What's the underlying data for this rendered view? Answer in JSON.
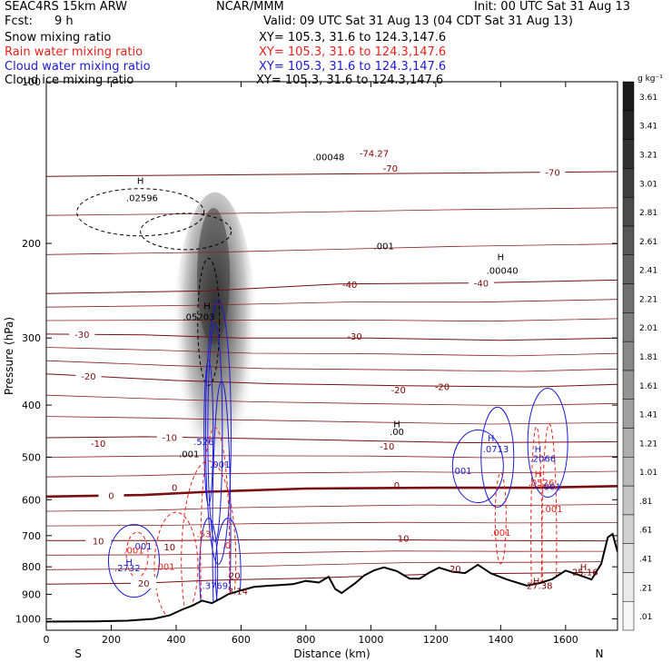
{
  "header": {
    "model": "SEAC4RS 15km ARW",
    "org": "NCAR/MMM",
    "init": "Init: 00 UTC Sat 31 Aug 13",
    "fcst_label": "Fcst:",
    "fcst_value": "9 h",
    "valid": "Valid: 09 UTC Sat 31 Aug 13 (04 CDT Sat 31 Aug 13)",
    "fields": [
      {
        "name": "Snow mixing ratio",
        "xy": "XY= 105.3, 31.6 to 124.3,147.6",
        "color": "#000000"
      },
      {
        "name": "Rain water mixing ratio",
        "xy": "XY= 105.3, 31.6 to 124.3,147.6",
        "color": "#e8221c"
      },
      {
        "name": "Cloud water mixing ratio",
        "xy": "XY= 105.3, 31.6 to 124.3,147.6",
        "color": "#1a1ad6"
      },
      {
        "name": "Cloud ice mixing ratio",
        "xy": "XY= 105.3, 31.6 to 124.3,147.6",
        "color": "#000000"
      }
    ]
  },
  "chart_data": {
    "type": "heatmap",
    "xlabel": "Distance (km)",
    "ylabel": "Pressure (hPa)",
    "xlim": [
      0,
      1760
    ],
    "ylim": [
      1050,
      100
    ],
    "y_scale": "log",
    "xticks": [
      0,
      200,
      400,
      600,
      800,
      1000,
      1200,
      1400,
      1600
    ],
    "yticks": [
      1000,
      900,
      800,
      700,
      600,
      500,
      400,
      300,
      200,
      100
    ],
    "x_end_labels": {
      "left": "S",
      "right": "N"
    },
    "colorbar": {
      "unit": "g kg⁻¹",
      "levels": [
        ".01",
        ".21",
        ".41",
        ".61",
        ".81",
        "1.01",
        "1.21",
        "1.41",
        "1.61",
        "1.81",
        "2.01",
        "2.21",
        "2.41",
        "2.61",
        "2.81",
        "3.01",
        "3.21",
        "3.41",
        "3.61"
      ]
    },
    "terrain_pressure": [
      [
        0,
        1012
      ],
      [
        150,
        1011
      ],
      [
        250,
        1008
      ],
      [
        330,
        1000
      ],
      [
        380,
        985
      ],
      [
        420,
        960
      ],
      [
        450,
        945
      ],
      [
        480,
        925
      ],
      [
        510,
        935
      ],
      [
        540,
        915
      ],
      [
        560,
        900
      ],
      [
        600,
        885
      ],
      [
        640,
        872
      ],
      [
        680,
        868
      ],
      [
        720,
        865
      ],
      [
        760,
        862
      ],
      [
        800,
        850
      ],
      [
        840,
        856
      ],
      [
        870,
        835
      ],
      [
        890,
        880
      ],
      [
        910,
        895
      ],
      [
        950,
        860
      ],
      [
        980,
        830
      ],
      [
        1010,
        812
      ],
      [
        1040,
        802
      ],
      [
        1080,
        815
      ],
      [
        1120,
        842
      ],
      [
        1150,
        842
      ],
      [
        1180,
        820
      ],
      [
        1210,
        803
      ],
      [
        1250,
        817
      ],
      [
        1290,
        822
      ],
      [
        1330,
        793
      ],
      [
        1370,
        823
      ],
      [
        1420,
        845
      ],
      [
        1480,
        867
      ],
      [
        1520,
        858
      ],
      [
        1560,
        843
      ],
      [
        1600,
        813
      ],
      [
        1640,
        828
      ],
      [
        1680,
        845
      ],
      [
        1710,
        790
      ],
      [
        1730,
        705
      ],
      [
        1745,
        695
      ],
      [
        1760,
        750
      ]
    ],
    "isotherms": [
      {
        "label": "-70",
        "label_at": 1560,
        "points": [
          [
            0,
            150
          ],
          [
            600,
            149
          ],
          [
            1200,
            148
          ],
          [
            1760,
            147
          ]
        ]
      },
      {
        "label": "-40",
        "label_at": 1340,
        "points": [
          [
            0,
            248
          ],
          [
            500,
            245
          ],
          [
            900,
            238
          ],
          [
            1300,
            237
          ],
          [
            1760,
            234
          ]
        ]
      },
      {
        "label": "-30",
        "label_at": 110,
        "points": [
          [
            0,
            295
          ],
          [
            300,
            296
          ],
          [
            600,
            300
          ],
          [
            1000,
            300
          ],
          [
            1400,
            303
          ],
          [
            1760,
            300
          ]
        ]
      },
      {
        "label": "-20",
        "label_at": 130,
        "points": [
          [
            0,
            350
          ],
          [
            400,
            360
          ],
          [
            700,
            365
          ],
          [
            1100,
            368
          ],
          [
            1500,
            370
          ],
          [
            1760,
            366
          ]
        ]
      },
      {
        "label": "-10",
        "label_at": 380,
        "points": [
          [
            0,
            460
          ],
          [
            300,
            458
          ],
          [
            500,
            460
          ],
          [
            900,
            465
          ],
          [
            1300,
            470
          ],
          [
            1760,
            468
          ]
        ]
      },
      {
        "label": "0",
        "label_at": 200,
        "points": [
          [
            0,
            592
          ],
          [
            300,
            588
          ],
          [
            500,
            580
          ],
          [
            800,
            572
          ],
          [
            1200,
            570
          ],
          [
            1500,
            570
          ],
          [
            1760,
            566
          ]
        ]
      },
      {
        "label": "10",
        "label_at": 160,
        "points": [
          [
            0,
            715
          ],
          [
            400,
            715
          ],
          [
            700,
            712
          ],
          [
            1000,
            712
          ],
          [
            1400,
            715
          ],
          [
            1760,
            716
          ]
        ]
      },
      {
        "label": "20",
        "label_at": 300,
        "points": [
          [
            0,
            862
          ],
          [
            300,
            858
          ],
          [
            500,
            848
          ],
          [
            800,
            840
          ],
          [
            1200,
            825
          ],
          [
            1500,
            822
          ],
          [
            1760,
            818
          ]
        ]
      }
    ],
    "contour_labels": [
      {
        "text": "H",
        "x": 290,
        "p": 155,
        "color": "#000000"
      },
      {
        "text": ".02596",
        "x": 295,
        "p": 167,
        "color": "#000000"
      },
      {
        "text": ".00048",
        "x": 870,
        "p": 140,
        "color": "#000000"
      },
      {
        "text": "-74.27",
        "x": 1010,
        "p": 138,
        "color": "#800000"
      },
      {
        "text": ".001",
        "x": 1040,
        "p": 205,
        "color": "#000000"
      },
      {
        "text": "H",
        "x": 1400,
        "p": 215,
        "color": "#000000"
      },
      {
        "text": ".00040",
        "x": 1405,
        "p": 228,
        "color": "#000000"
      },
      {
        "text": "H",
        "x": 495,
        "p": 265,
        "color": "#000000"
      },
      {
        "text": ".05203",
        "x": 470,
        "p": 278,
        "color": "#000000"
      },
      {
        "text": "H",
        "x": 1080,
        "p": 440,
        "color": "#000000"
      },
      {
        "text": ".00",
        "x": 1080,
        "p": 455,
        "color": "#000000"
      },
      {
        "text": ".001",
        "x": 440,
        "p": 500,
        "color": "#000000"
      },
      {
        "text": ".526",
        "x": 485,
        "p": 475,
        "color": "#1a1ad6"
      },
      {
        "text": ".001",
        "x": 535,
        "p": 523,
        "color": "#1a1ad6"
      },
      {
        "text": "-10",
        "x": 1050,
        "p": 484,
        "color": "#800000"
      },
      {
        "text": "H",
        "x": 1370,
        "p": 467,
        "color": "#1a1ad6"
      },
      {
        "text": ".0713",
        "x": 1385,
        "p": 490,
        "color": "#1a1ad6"
      },
      {
        "text": ".001",
        "x": 1280,
        "p": 537,
        "color": "#1a1ad6"
      },
      {
        "text": "H",
        "x": 1515,
        "p": 490,
        "color": "#1a1ad6"
      },
      {
        "text": ".2066",
        "x": 1530,
        "p": 510,
        "color": "#1a1ad6"
      },
      {
        "text": "H",
        "x": 1515,
        "p": 545,
        "color": "#e8221c"
      },
      {
        "text": ".0526",
        "x": 1525,
        "p": 565,
        "color": "#e8221c"
      },
      {
        "text": ".001",
        "x": 1555,
        "p": 575,
        "color": "#1a1ad6"
      },
      {
        "text": ".001",
        "x": 1560,
        "p": 633,
        "color": "#e8221c"
      },
      {
        "text": ".001",
        "x": 1400,
        "p": 700,
        "color": "#e8221c"
      },
      {
        "text": "0",
        "x": 395,
        "p": 578,
        "color": "#800000"
      },
      {
        "text": "0",
        "x": 1080,
        "p": 572,
        "color": "#800000"
      },
      {
        "text": "-20",
        "x": 1085,
        "p": 380,
        "color": "#800000"
      },
      {
        "text": "-30",
        "x": 950,
        "p": 302,
        "color": "#800000"
      },
      {
        "text": "-40",
        "x": 935,
        "p": 242,
        "color": "#800000"
      },
      {
        "text": "-70",
        "x": 1060,
        "p": 147,
        "color": "#800000"
      },
      {
        "text": "-10",
        "x": 160,
        "p": 478,
        "color": "#800000"
      },
      {
        "text": "-20",
        "x": 1220,
        "p": 375,
        "color": "#800000"
      },
      {
        "text": "10",
        "x": 1100,
        "p": 718,
        "color": "#800000"
      },
      {
        "text": "10",
        "x": 380,
        "p": 745,
        "color": "#800000"
      },
      {
        "text": "20",
        "x": 1260,
        "p": 818,
        "color": "#800000"
      },
      {
        "text": "20",
        "x": 580,
        "p": 843,
        "color": "#800000"
      },
      {
        "text": ".001",
        "x": 295,
        "p": 742,
        "color": "#1a1ad6"
      },
      {
        "text": ".001",
        "x": 270,
        "p": 755,
        "color": "#e8221c"
      },
      {
        "text": "H",
        "x": 255,
        "p": 795,
        "color": "#1a1ad6"
      },
      {
        "text": ".2732",
        "x": 250,
        "p": 815,
        "color": "#1a1ad6"
      },
      {
        "text": ".001",
        "x": 365,
        "p": 810,
        "color": "#e8221c"
      },
      {
        "text": ".3769",
        "x": 520,
        "p": 880,
        "color": "#1a1ad6"
      },
      {
        "text": "3.14",
        "x": 590,
        "p": 900,
        "color": "#800000"
      },
      {
        "text": "H",
        "x": 1510,
        "p": 862,
        "color": "#800000"
      },
      {
        "text": "27.38",
        "x": 1520,
        "p": 880,
        "color": "#800000"
      },
      {
        "text": "H",
        "x": 1655,
        "p": 812,
        "color": "#800000"
      },
      {
        "text": "25.16",
        "x": 1660,
        "p": 830,
        "color": "#800000"
      },
      {
        "text": ".0",
        "x": 555,
        "p": 740,
        "color": "#e8221c"
      },
      {
        "text": ".53",
        "x": 485,
        "p": 705,
        "color": "#e8221c"
      }
    ]
  }
}
